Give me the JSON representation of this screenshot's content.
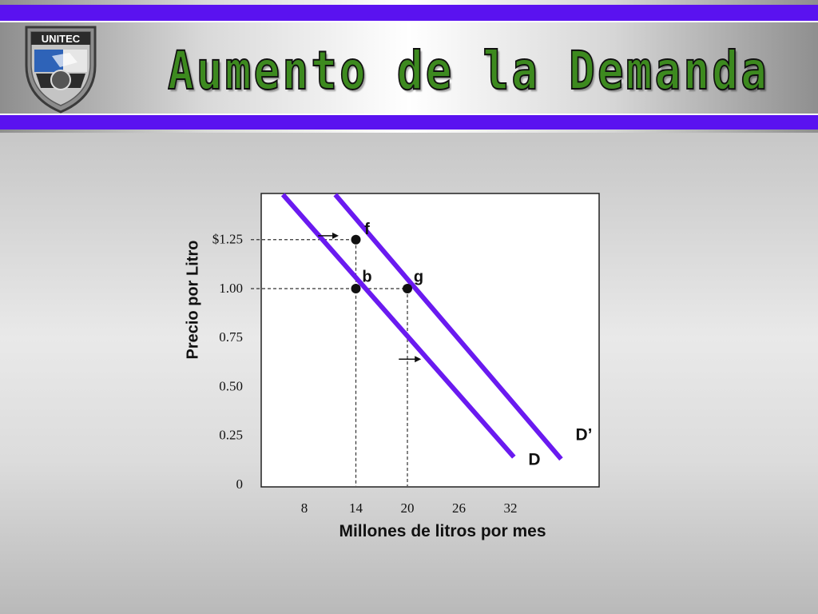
{
  "header": {
    "title": "Aumento de la Demanda",
    "logo_text": "UNITEC",
    "band_color": "#5a12f0",
    "title_color": "#3d8a1f"
  },
  "chart_data": {
    "type": "line",
    "xlabel": "Millones de litros por mes",
    "ylabel": "Precio por Litro",
    "x_ticks": [
      8,
      14,
      20,
      26,
      32
    ],
    "x_tick_labels": [
      "8",
      "14",
      "20",
      "26",
      "32"
    ],
    "y_ticks": [
      0,
      0.25,
      0.5,
      0.75,
      1.0,
      1.25
    ],
    "y_tick_labels": [
      "0",
      "0.25",
      "0.50",
      "0.75",
      "1.00",
      "$1.25"
    ],
    "series": [
      {
        "name": "D",
        "color": "#6a1af0",
        "points": [
          [
            5.5,
            1.48
          ],
          [
            32.4,
            0.14
          ]
        ]
      },
      {
        "name": "D’",
        "color": "#6a1af0",
        "points": [
          [
            11.6,
            1.48
          ],
          [
            37.9,
            0.13
          ]
        ]
      }
    ],
    "points": [
      {
        "label": "f",
        "x": 14,
        "y": 1.25
      },
      {
        "label": "b",
        "x": 14,
        "y": 1.0
      },
      {
        "label": "g",
        "x": 20,
        "y": 1.0
      }
    ],
    "guides": [
      {
        "from": [
          0,
          1.25
        ],
        "to": [
          14,
          1.25
        ]
      },
      {
        "from": [
          0,
          1.0
        ],
        "to": [
          20,
          1.0
        ]
      },
      {
        "from": [
          14,
          1.25
        ],
        "to": [
          14,
          0
        ]
      },
      {
        "from": [
          20,
          1.0
        ],
        "to": [
          20,
          0
        ]
      }
    ],
    "shift_arrows": [
      {
        "from": [
          9.6,
          1.27
        ],
        "to": [
          12.0,
          1.27
        ]
      },
      {
        "from": [
          19.0,
          0.64
        ],
        "to": [
          21.6,
          0.64
        ]
      }
    ],
    "line_color": "#6a1af0",
    "grid": false
  }
}
